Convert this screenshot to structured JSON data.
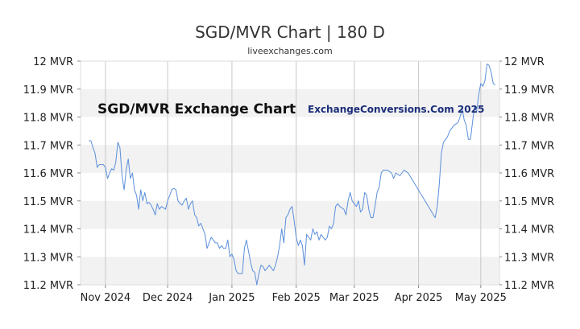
{
  "chart_data": {
    "type": "line",
    "title": "SGD/MVR Chart | 180 D",
    "subtitle": "liveexchanges.com",
    "annotations": [
      "SGD/MVR Exchange Chart",
      "ExchangeConversions.Com 2025"
    ],
    "y_unit": "MVR",
    "ylim": [
      11.2,
      12.0
    ],
    "y_ticks": [
      "12 MVR",
      "11.9 MVR",
      "11.8 MVR",
      "11.7 MVR",
      "11.6 MVR",
      "11.5 MVR",
      "11.4 MVR",
      "11.3 MVR",
      "11.2 MVR"
    ],
    "y_tick_values": [
      12.0,
      11.9,
      11.8,
      11.7,
      11.6,
      11.5,
      11.4,
      11.3,
      11.2
    ],
    "x_range": [
      "2024-10-20",
      "2025-05-10"
    ],
    "x_ticks": [
      {
        "label": "Nov 2024",
        "date": "2024-11-01"
      },
      {
        "label": "Dec 2024",
        "date": "2024-12-01"
      },
      {
        "label": "Jan 2025",
        "date": "2025-01-01"
      },
      {
        "label": "Feb 2025",
        "date": "2025-02-01"
      },
      {
        "label": "Mar 2025",
        "date": "2025-03-01"
      },
      {
        "label": "Apr 2025",
        "date": "2025-04-01"
      },
      {
        "label": "May 2025",
        "date": "2025-05-01"
      }
    ],
    "grid": "horizontal bands and monthly vertical lines",
    "legend": "none",
    "colors": {
      "series": "#5b8fdb",
      "band": "#f2f2f2",
      "grid": "#c8c8c8",
      "annotation_right": "#1c2e7a"
    },
    "series": [
      {
        "values": [
          [
            "2024-10-24",
            11.715
          ],
          [
            "2024-10-25",
            11.715
          ],
          [
            "2024-10-26",
            11.69
          ],
          [
            "2024-10-27",
            11.67
          ],
          [
            "2024-10-28",
            11.62
          ],
          [
            "2024-10-29",
            11.63
          ],
          [
            "2024-10-31",
            11.63
          ],
          [
            "2024-11-01",
            11.62
          ],
          [
            "2024-11-02",
            11.58
          ],
          [
            "2024-11-03",
            11.6
          ],
          [
            "2024-11-04",
            11.615
          ],
          [
            "2024-11-05",
            11.61
          ],
          [
            "2024-11-06",
            11.64
          ],
          [
            "2024-11-07",
            11.71
          ],
          [
            "2024-11-08",
            11.69
          ],
          [
            "2024-11-09",
            11.59
          ],
          [
            "2024-11-10",
            11.54
          ],
          [
            "2024-11-11",
            11.61
          ],
          [
            "2024-11-12",
            11.65
          ],
          [
            "2024-11-13",
            11.58
          ],
          [
            "2024-11-14",
            11.6
          ],
          [
            "2024-11-15",
            11.54
          ],
          [
            "2024-11-16",
            11.52
          ],
          [
            "2024-11-17",
            11.47
          ],
          [
            "2024-11-18",
            11.54
          ],
          [
            "2024-11-19",
            11.5
          ],
          [
            "2024-11-20",
            11.53
          ],
          [
            "2024-11-21",
            11.49
          ],
          [
            "2024-11-22",
            11.495
          ],
          [
            "2024-11-23",
            11.485
          ],
          [
            "2024-11-24",
            11.47
          ],
          [
            "2024-11-25",
            11.45
          ],
          [
            "2024-11-26",
            11.49
          ],
          [
            "2024-11-27",
            11.47
          ],
          [
            "2024-11-28",
            11.48
          ],
          [
            "2024-11-29",
            11.475
          ],
          [
            "2024-11-30",
            11.47
          ],
          [
            "2024-12-01",
            11.5
          ],
          [
            "2024-12-02",
            11.52
          ],
          [
            "2024-12-03",
            11.54
          ],
          [
            "2024-12-04",
            11.545
          ],
          [
            "2024-12-05",
            11.54
          ],
          [
            "2024-12-06",
            11.5
          ],
          [
            "2024-12-07",
            11.49
          ],
          [
            "2024-12-08",
            11.485
          ],
          [
            "2024-12-09",
            11.5
          ],
          [
            "2024-12-10",
            11.51
          ],
          [
            "2024-12-11",
            11.47
          ],
          [
            "2024-12-12",
            11.49
          ],
          [
            "2024-12-13",
            11.5
          ],
          [
            "2024-12-14",
            11.45
          ],
          [
            "2024-12-15",
            11.44
          ],
          [
            "2024-12-16",
            11.41
          ],
          [
            "2024-12-17",
            11.42
          ],
          [
            "2024-12-18",
            11.4
          ],
          [
            "2024-12-19",
            11.38
          ],
          [
            "2024-12-20",
            11.33
          ],
          [
            "2024-12-21",
            11.35
          ],
          [
            "2024-12-22",
            11.37
          ],
          [
            "2024-12-23",
            11.36
          ],
          [
            "2024-12-24",
            11.35
          ],
          [
            "2024-12-25",
            11.35
          ],
          [
            "2024-12-26",
            11.33
          ],
          [
            "2024-12-27",
            11.34
          ],
          [
            "2024-12-28",
            11.33
          ],
          [
            "2024-12-29",
            11.33
          ],
          [
            "2024-12-30",
            11.36
          ],
          [
            "2024-12-31",
            11.3
          ],
          [
            "2025-01-01",
            11.31
          ],
          [
            "2025-01-02",
            11.29
          ],
          [
            "2025-01-03",
            11.25
          ],
          [
            "2025-01-04",
            11.24
          ],
          [
            "2025-01-05",
            11.24
          ],
          [
            "2025-01-06",
            11.24
          ],
          [
            "2025-01-07",
            11.33
          ],
          [
            "2025-01-08",
            11.36
          ],
          [
            "2025-01-09",
            11.32
          ],
          [
            "2025-01-10",
            11.28
          ],
          [
            "2025-01-11",
            11.25
          ],
          [
            "2025-01-12",
            11.245
          ],
          [
            "2025-01-13",
            11.2
          ],
          [
            "2025-01-14",
            11.24
          ],
          [
            "2025-01-15",
            11.27
          ],
          [
            "2025-01-16",
            11.265
          ],
          [
            "2025-01-17",
            11.25
          ],
          [
            "2025-01-18",
            11.26
          ],
          [
            "2025-01-19",
            11.27
          ],
          [
            "2025-01-20",
            11.26
          ],
          [
            "2025-01-21",
            11.25
          ],
          [
            "2025-01-22",
            11.27
          ],
          [
            "2025-01-23",
            11.3
          ],
          [
            "2025-01-24",
            11.34
          ],
          [
            "2025-01-25",
            11.4
          ],
          [
            "2025-01-26",
            11.35
          ],
          [
            "2025-01-27",
            11.44
          ],
          [
            "2025-01-28",
            11.45
          ],
          [
            "2025-01-29",
            11.47
          ],
          [
            "2025-01-30",
            11.48
          ],
          [
            "2025-01-31",
            11.43
          ],
          [
            "2025-02-01",
            11.37
          ],
          [
            "2025-02-02",
            11.34
          ],
          [
            "2025-02-03",
            11.36
          ],
          [
            "2025-02-04",
            11.34
          ],
          [
            "2025-02-05",
            11.27
          ],
          [
            "2025-02-06",
            11.38
          ],
          [
            "2025-02-07",
            11.37
          ],
          [
            "2025-02-08",
            11.36
          ],
          [
            "2025-02-09",
            11.4
          ],
          [
            "2025-02-10",
            11.38
          ],
          [
            "2025-02-11",
            11.39
          ],
          [
            "2025-02-12",
            11.36
          ],
          [
            "2025-02-13",
            11.38
          ],
          [
            "2025-02-14",
            11.37
          ],
          [
            "2025-02-15",
            11.36
          ],
          [
            "2025-02-16",
            11.37
          ],
          [
            "2025-02-17",
            11.41
          ],
          [
            "2025-02-18",
            11.4
          ],
          [
            "2025-02-19",
            11.42
          ],
          [
            "2025-02-20",
            11.48
          ],
          [
            "2025-02-21",
            11.49
          ],
          [
            "2025-02-22",
            11.48
          ],
          [
            "2025-02-23",
            11.475
          ],
          [
            "2025-02-24",
            11.47
          ],
          [
            "2025-02-25",
            11.45
          ],
          [
            "2025-02-26",
            11.5
          ],
          [
            "2025-02-27",
            11.53
          ],
          [
            "2025-02-28",
            11.5
          ],
          [
            "2025-03-01",
            11.49
          ],
          [
            "2025-03-02",
            11.48
          ],
          [
            "2025-03-03",
            11.5
          ],
          [
            "2025-03-04",
            11.46
          ],
          [
            "2025-03-05",
            11.47
          ],
          [
            "2025-03-06",
            11.53
          ],
          [
            "2025-03-07",
            11.52
          ],
          [
            "2025-03-08",
            11.47
          ],
          [
            "2025-03-09",
            11.44
          ],
          [
            "2025-03-10",
            11.44
          ],
          [
            "2025-03-11",
            11.48
          ],
          [
            "2025-03-12",
            11.53
          ],
          [
            "2025-03-13",
            11.55
          ],
          [
            "2025-03-14",
            11.6
          ],
          [
            "2025-03-15",
            11.61
          ],
          [
            "2025-03-16",
            11.61
          ],
          [
            "2025-03-17",
            11.61
          ],
          [
            "2025-03-18",
            11.605
          ],
          [
            "2025-03-19",
            11.6
          ],
          [
            "2025-03-20",
            11.58
          ],
          [
            "2025-03-21",
            11.6
          ],
          [
            "2025-03-22",
            11.595
          ],
          [
            "2025-03-23",
            11.59
          ],
          [
            "2025-03-24",
            11.6
          ],
          [
            "2025-03-25",
            11.61
          ],
          [
            "2025-03-26",
            11.605
          ],
          [
            "2025-03-27",
            11.6
          ],
          [
            "2025-04-09",
            11.44
          ],
          [
            "2025-04-10",
            11.48
          ],
          [
            "2025-04-11",
            11.56
          ],
          [
            "2025-04-12",
            11.67
          ],
          [
            "2025-04-13",
            11.71
          ],
          [
            "2025-04-14",
            11.72
          ],
          [
            "2025-04-15",
            11.73
          ],
          [
            "2025-04-16",
            11.75
          ],
          [
            "2025-04-17",
            11.76
          ],
          [
            "2025-04-18",
            11.77
          ],
          [
            "2025-04-19",
            11.775
          ],
          [
            "2025-04-20",
            11.78
          ],
          [
            "2025-04-21",
            11.8
          ],
          [
            "2025-04-22",
            11.83
          ],
          [
            "2025-04-23",
            11.79
          ],
          [
            "2025-04-24",
            11.77
          ],
          [
            "2025-04-25",
            11.72
          ],
          [
            "2025-04-26",
            11.72
          ],
          [
            "2025-04-27",
            11.78
          ],
          [
            "2025-04-28",
            11.84
          ],
          [
            "2025-04-29",
            11.82
          ],
          [
            "2025-04-30",
            11.88
          ],
          [
            "2025-05-01",
            11.92
          ],
          [
            "2025-05-02",
            11.91
          ],
          [
            "2025-05-03",
            11.93
          ],
          [
            "2025-05-04",
            11.99
          ],
          [
            "2025-05-05",
            11.985
          ],
          [
            "2025-05-06",
            11.96
          ],
          [
            "2025-05-07",
            11.92
          ],
          [
            "2025-05-08",
            11.915
          ]
        ]
      }
    ]
  }
}
